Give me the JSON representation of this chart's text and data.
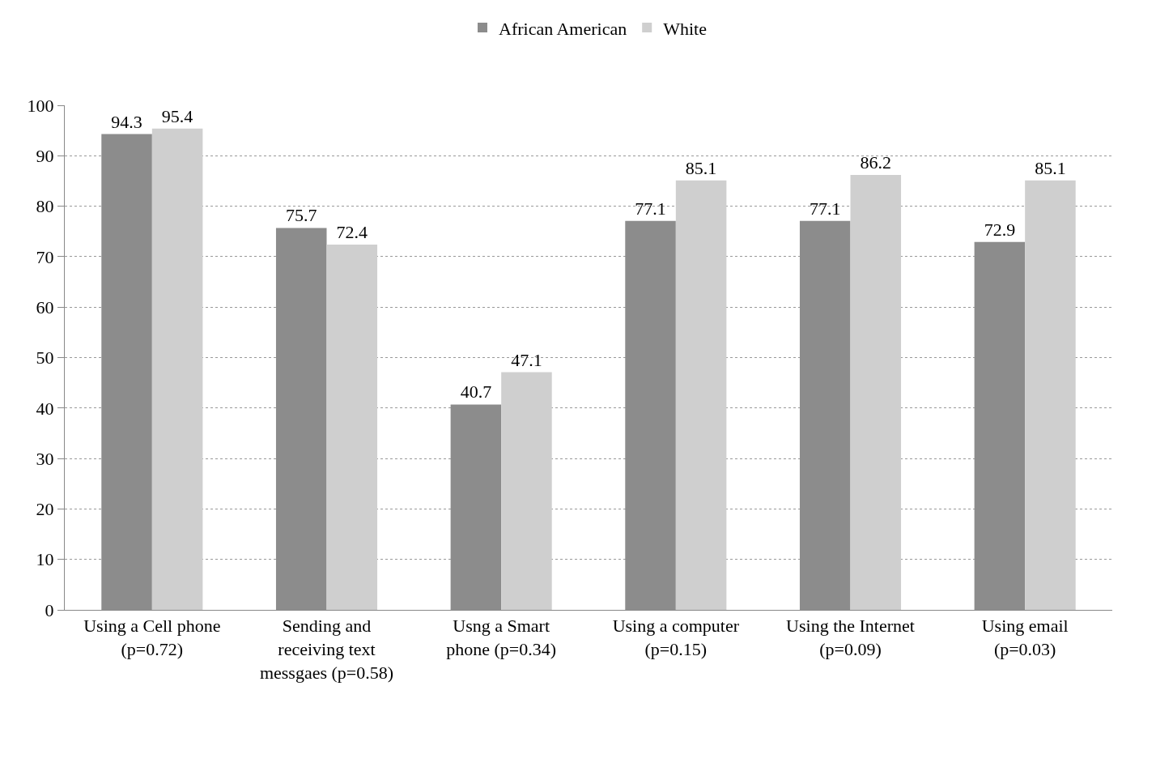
{
  "chart_data": {
    "type": "bar",
    "categories": [
      "Using a Cell phone\n(p=0.72)",
      "Sending and\nreceiving text\nmessgaes (p=0.58)",
      "Usng a Smart\nphone (p=0.34)",
      "Using a computer\n(p=0.15)",
      "Using the Internet\n(p=0.09)",
      "Using email\n(p=0.03)"
    ],
    "series": [
      {
        "name": "African American",
        "color": "#8c8c8c",
        "values": [
          94.3,
          75.7,
          40.7,
          77.1,
          77.1,
          72.9
        ]
      },
      {
        "name": "White",
        "color": "#cfcfcf",
        "values": [
          95.4,
          72.4,
          47.1,
          85.1,
          86.2,
          85.1
        ]
      }
    ],
    "ylim": [
      0,
      100
    ],
    "yticks": [
      0,
      10,
      20,
      30,
      40,
      50,
      60,
      70,
      80,
      90,
      100
    ],
    "grid": "y",
    "legend": "top",
    "data_labels": true
  }
}
